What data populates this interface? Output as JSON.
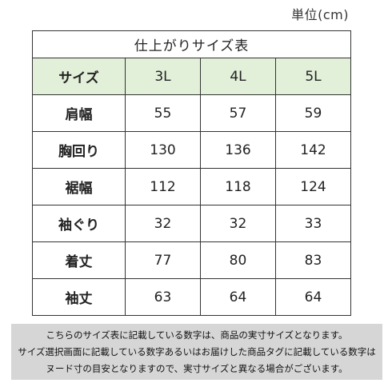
{
  "unit_label": "単位(cm)",
  "table": {
    "title": "仕上がりサイズ表",
    "header": [
      "サイズ",
      "3L",
      "4L",
      "5L"
    ],
    "rows": [
      {
        "label": "肩幅",
        "values": [
          "55",
          "57",
          "59"
        ]
      },
      {
        "label": "胸回り",
        "values": [
          "130",
          "136",
          "142"
        ]
      },
      {
        "label": "裾幅",
        "values": [
          "112",
          "118",
          "124"
        ]
      },
      {
        "label": "袖ぐり",
        "values": [
          "32",
          "32",
          "33"
        ]
      },
      {
        "label": "着丈",
        "values": [
          "77",
          "80",
          "83"
        ]
      },
      {
        "label": "袖丈",
        "values": [
          "63",
          "64",
          "64"
        ]
      }
    ]
  },
  "note": {
    "lines": [
      "こちらのサイズ表に記載している数字は、商品の実寸サイズとなります。",
      "サイズ選択画面に記載している数字あるいはお届けした商品タグに記載している数字は",
      "ヌード寸の目安となりますので、実寸サイズと異なる場合がございます。"
    ]
  },
  "colors": {
    "header_bg": "#e2efd9",
    "note_bg": "#d6d6d6",
    "border": "#333333"
  }
}
